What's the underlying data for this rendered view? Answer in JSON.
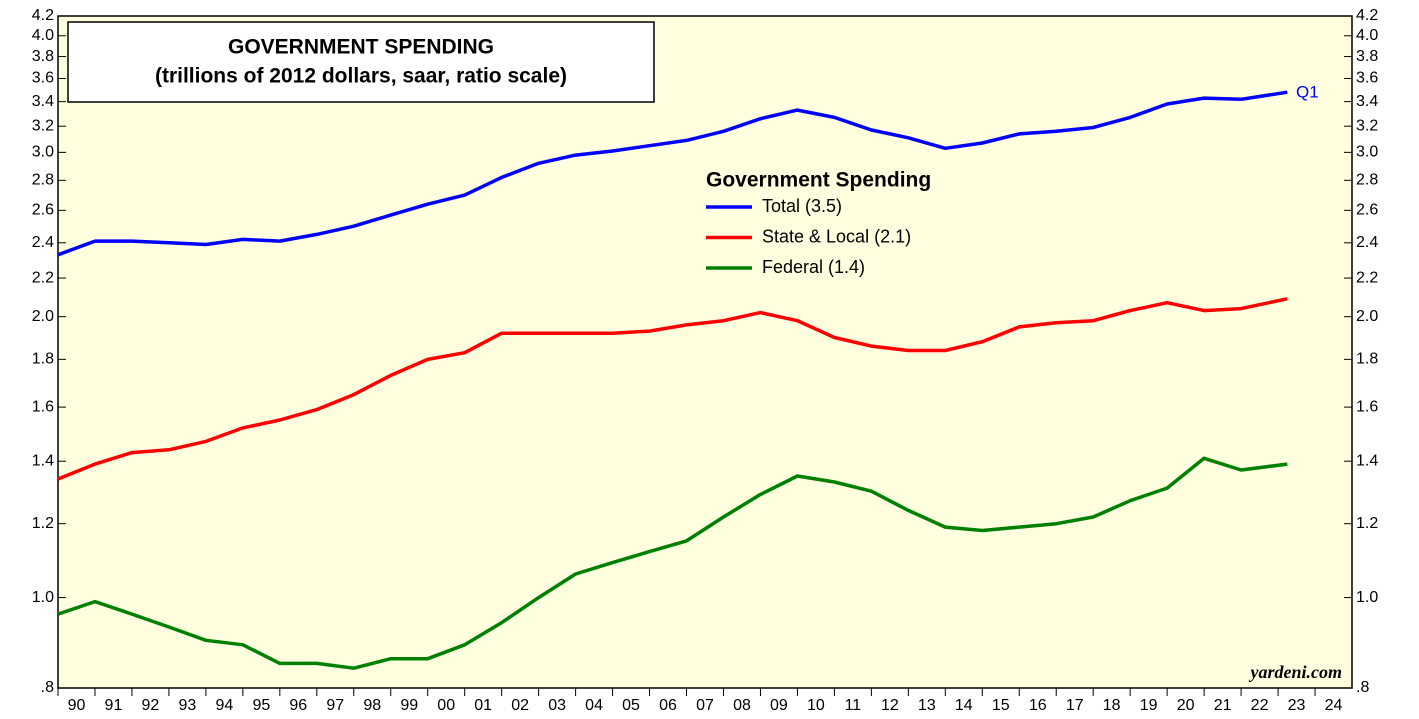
{
  "chart_data": {
    "type": "line",
    "title": "GOVERNMENT SPENDING",
    "subtitle": "(trillions of 2012 dollars, saar, ratio scale)",
    "legend_title": "Government Spending",
    "annotations": [
      "Q1",
      "yardeni.com"
    ],
    "log_scale": true,
    "grid": false,
    "x": [
      1990,
      1991,
      1992,
      1993,
      1994,
      1995,
      1996,
      1997,
      1998,
      1999,
      2000,
      2001,
      2002,
      2003,
      2004,
      2005,
      2006,
      2007,
      2008,
      2009,
      2010,
      2011,
      2012,
      2013,
      2014,
      2015,
      2016,
      2017,
      2018,
      2019,
      2020,
      2021,
      2022,
      2023.25
    ],
    "series": [
      {
        "name": "Total (3.5)",
        "color": "#0000ff",
        "values": [
          2.33,
          2.41,
          2.41,
          2.4,
          2.39,
          2.42,
          2.41,
          2.45,
          2.5,
          2.57,
          2.64,
          2.7,
          2.82,
          2.92,
          2.98,
          3.01,
          3.05,
          3.09,
          3.16,
          3.26,
          3.33,
          3.27,
          3.17,
          3.11,
          3.03,
          3.07,
          3.14,
          3.16,
          3.19,
          3.27,
          3.38,
          3.43,
          3.42,
          3.48
        ]
      },
      {
        "name": "State & Local (2.1)",
        "color": "#ff0000",
        "values": [
          1.34,
          1.39,
          1.43,
          1.44,
          1.47,
          1.52,
          1.55,
          1.59,
          1.65,
          1.73,
          1.8,
          1.83,
          1.92,
          1.92,
          1.92,
          1.92,
          1.93,
          1.96,
          1.98,
          2.02,
          1.98,
          1.9,
          1.86,
          1.84,
          1.84,
          1.88,
          1.95,
          1.97,
          1.98,
          2.03,
          2.07,
          2.03,
          2.04,
          2.09
        ]
      },
      {
        "name": "Federal (1.4)",
        "color": "#008000",
        "values": [
          0.96,
          0.99,
          0.96,
          0.93,
          0.9,
          0.89,
          0.85,
          0.85,
          0.84,
          0.86,
          0.86,
          0.89,
          0.94,
          1.0,
          1.06,
          1.09,
          1.12,
          1.15,
          1.22,
          1.29,
          1.35,
          1.33,
          1.3,
          1.24,
          1.19,
          1.18,
          1.19,
          1.2,
          1.22,
          1.27,
          1.31,
          1.41,
          1.37,
          1.39
        ]
      }
    ],
    "xlim": [
      1990,
      2025
    ],
    "xticks": [
      {
        "value": 1990,
        "label": "90"
      },
      {
        "value": 1991,
        "label": "91"
      },
      {
        "value": 1992,
        "label": "92"
      },
      {
        "value": 1993,
        "label": "93"
      },
      {
        "value": 1994,
        "label": "94"
      },
      {
        "value": 1995,
        "label": "95"
      },
      {
        "value": 1996,
        "label": "96"
      },
      {
        "value": 1997,
        "label": "97"
      },
      {
        "value": 1998,
        "label": "98"
      },
      {
        "value": 1999,
        "label": "99"
      },
      {
        "value": 2000,
        "label": "00"
      },
      {
        "value": 2001,
        "label": "01"
      },
      {
        "value": 2002,
        "label": "02"
      },
      {
        "value": 2003,
        "label": "03"
      },
      {
        "value": 2004,
        "label": "04"
      },
      {
        "value": 2005,
        "label": "05"
      },
      {
        "value": 2006,
        "label": "06"
      },
      {
        "value": 2007,
        "label": "07"
      },
      {
        "value": 2008,
        "label": "08"
      },
      {
        "value": 2009,
        "label": "09"
      },
      {
        "value": 2010,
        "label": "10"
      },
      {
        "value": 2011,
        "label": "11"
      },
      {
        "value": 2012,
        "label": "12"
      },
      {
        "value": 2013,
        "label": "13"
      },
      {
        "value": 2014,
        "label": "14"
      },
      {
        "value": 2015,
        "label": "15"
      },
      {
        "value": 2016,
        "label": "16"
      },
      {
        "value": 2017,
        "label": "17"
      },
      {
        "value": 2018,
        "label": "18"
      },
      {
        "value": 2019,
        "label": "19"
      },
      {
        "value": 2020,
        "label": "20"
      },
      {
        "value": 2021,
        "label": "21"
      },
      {
        "value": 2022,
        "label": "22"
      },
      {
        "value": 2023,
        "label": "23"
      },
      {
        "value": 2024,
        "label": "24"
      }
    ],
    "ylim": [
      0.8,
      4.2
    ],
    "yticks": [
      4.2,
      {
        "value": 4.0,
        "label": "4.0"
      },
      3.8,
      3.6,
      3.4,
      3.2,
      {
        "value": 3.0,
        "label": "3.0"
      },
      2.8,
      2.6,
      2.4,
      2.2,
      {
        "value": 2.0,
        "label": "2.0"
      },
      1.8,
      1.6,
      1.4,
      1.2,
      {
        "value": 1.0,
        "label": "1.0"
      },
      {
        "value": 0.8,
        "label": ".8"
      }
    ]
  }
}
